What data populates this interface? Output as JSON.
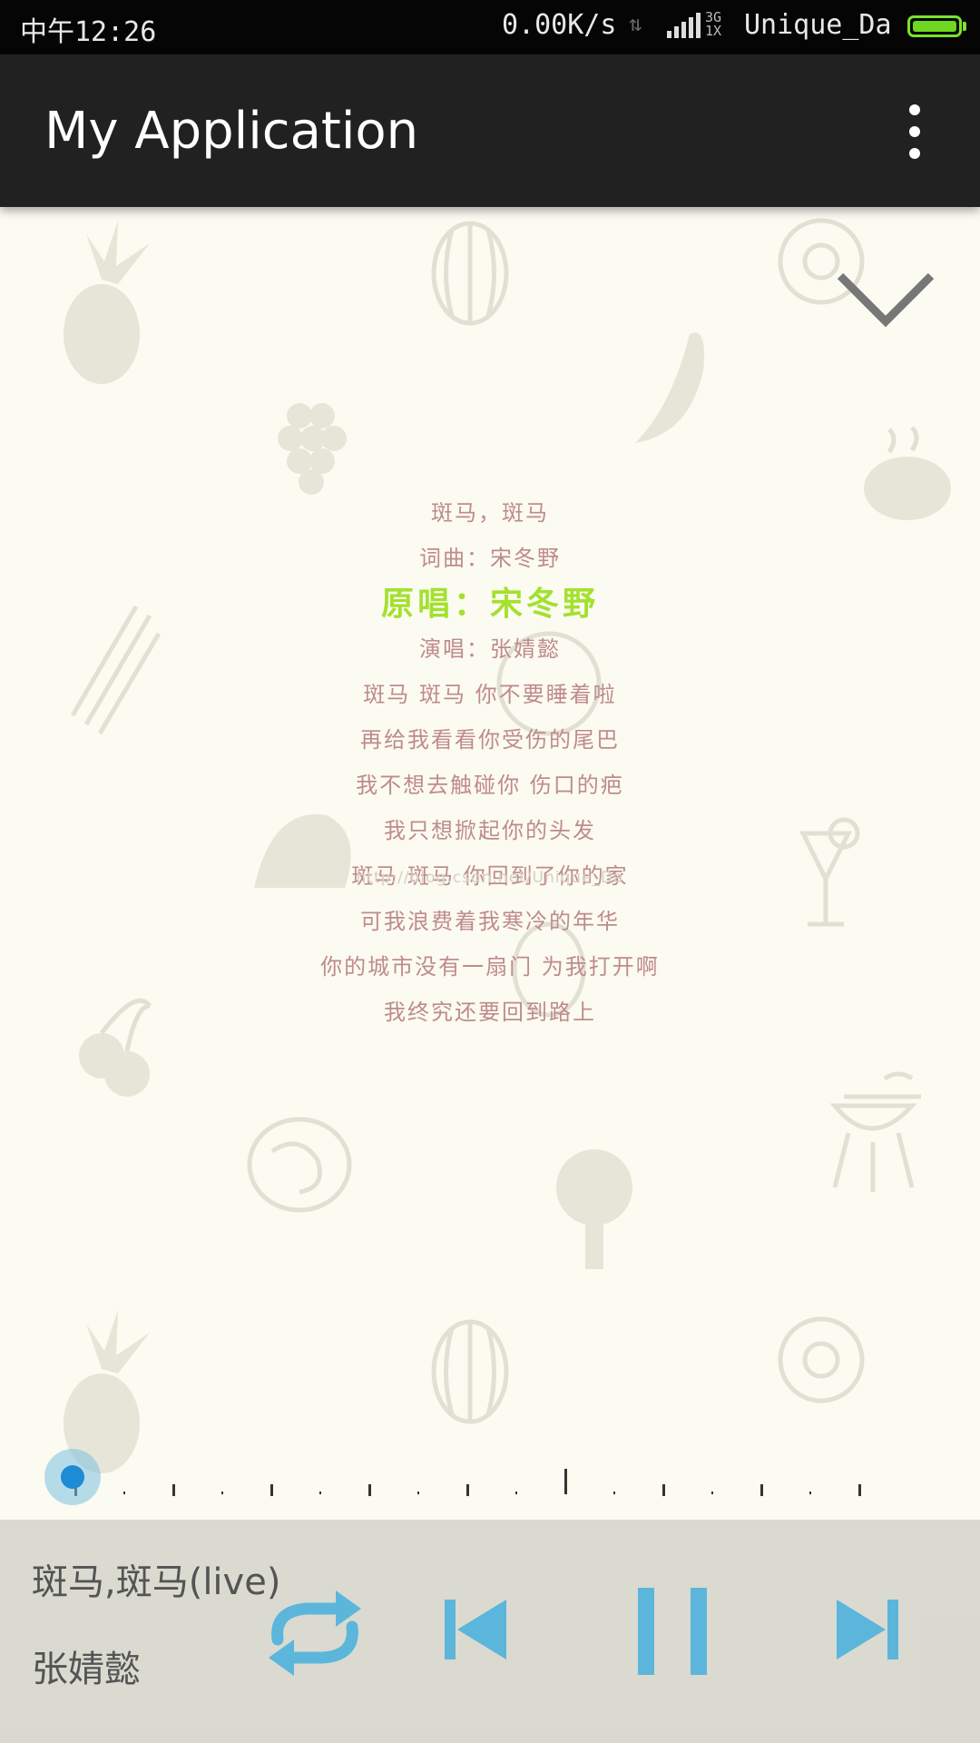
{
  "status_bar": {
    "time": "中午12:26",
    "net_speed": "0.00K/s",
    "network_type_top": "3G",
    "network_type_bottom": "1X",
    "carrier": "Unique_Da",
    "battery_color": "#6fd71f"
  },
  "app_bar": {
    "title": "My Application",
    "overflow_icon": "more-vert-icon"
  },
  "lyrics": {
    "current_index": 2,
    "current_color": "#a3e12e",
    "line_color": "#bf8b8b",
    "lines": [
      "斑马，斑马",
      "词曲：宋冬野",
      "原唱：宋冬野",
      "演唱：张婧懿",
      "斑马 斑马 你不要睡着啦",
      "再给我看看你受伤的尾巴",
      "我不想去触碰你 伤口的疤",
      "我只想掀起你的头发",
      "斑马 斑马 你回到了你的家",
      "可我浪费着我寒冷的年华",
      "你的城市没有一扇门 为我打开啊",
      "我终究还要回到路上"
    ],
    "watermark": "http://blog.csdn.net/Unique_Da"
  },
  "player": {
    "progress": 0.0,
    "song_title": "斑马,斑马(live)",
    "artist": "张婧懿",
    "accent_color": "#5cb6dc",
    "controls": {
      "repeat_icon": "repeat-icon",
      "previous_icon": "skip-previous-icon",
      "pause_icon": "pause-icon",
      "next_icon": "skip-next-icon"
    }
  }
}
